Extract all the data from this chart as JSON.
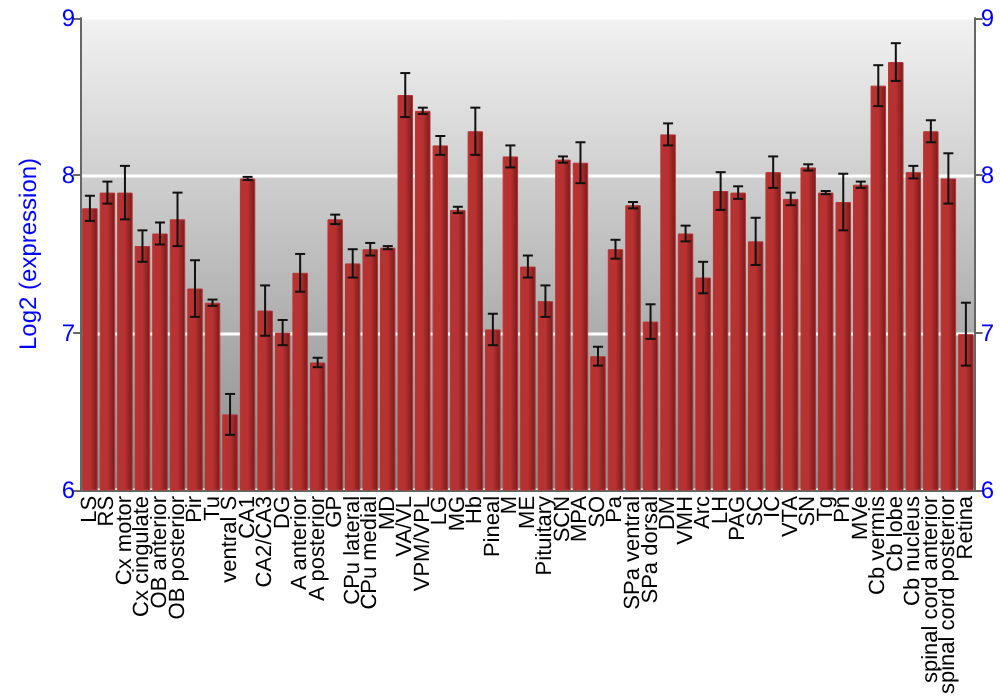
{
  "chart_data": {
    "type": "bar",
    "ylabel": "Log2 (expression)",
    "categories": [
      "LS",
      "RS",
      "Cx motor",
      "Cx cingulate",
      "OB anterior",
      "OB posterior",
      "Pir",
      "Tu",
      "ventral S",
      "CA1",
      "CA2/CA3",
      "DG",
      "A anterior",
      "A posterior",
      "GP",
      "CPu lateral",
      "CPu medial",
      "MD",
      "VA/VL",
      "VPM/VPL",
      "LG",
      "MG",
      "Hb",
      "Pineal",
      "M",
      "ME",
      "Pituitary",
      "SCN",
      "MPA",
      "SO",
      "Pa",
      "SPa ventral",
      "SPa dorsal",
      "DM",
      "VMH",
      "Arc",
      "LH",
      "PAG",
      "SC",
      "IC",
      "VTA",
      "SN",
      "Tg",
      "Pn",
      "MVe",
      "Cb vermis",
      "Cb lobe",
      "Cb nucleus",
      "spinal cord anterior",
      "spinal cord posterior",
      "Retina"
    ],
    "values": [
      7.79,
      7.89,
      7.89,
      7.55,
      7.63,
      7.72,
      7.28,
      7.19,
      6.48,
      7.98,
      7.14,
      7.0,
      7.38,
      6.81,
      7.72,
      7.44,
      7.53,
      7.54,
      8.51,
      8.41,
      8.19,
      7.78,
      8.28,
      7.02,
      8.12,
      7.42,
      7.2,
      8.1,
      8.08,
      6.85,
      7.53,
      7.81,
      7.07,
      8.26,
      7.63,
      7.35,
      7.9,
      7.89,
      7.58,
      8.02,
      7.85,
      8.05,
      7.89,
      7.83,
      7.94,
      8.57,
      8.72,
      8.02,
      8.28,
      7.98,
      6.99
    ],
    "errors": [
      0.08,
      0.07,
      0.17,
      0.1,
      0.07,
      0.17,
      0.18,
      0.02,
      0.13,
      0.01,
      0.16,
      0.08,
      0.12,
      0.03,
      0.03,
      0.09,
      0.04,
      0.01,
      0.14,
      0.02,
      0.06,
      0.02,
      0.15,
      0.1,
      0.07,
      0.07,
      0.1,
      0.02,
      0.13,
      0.06,
      0.06,
      0.02,
      0.11,
      0.07,
      0.05,
      0.1,
      0.12,
      0.04,
      0.15,
      0.1,
      0.04,
      0.02,
      0.01,
      0.18,
      0.02,
      0.13,
      0.12,
      0.04,
      0.07,
      0.16,
      0.2
    ],
    "color": "#b83232",
    "ylim": [
      6,
      9
    ],
    "yticks": [
      6,
      7,
      8,
      9
    ],
    "y2lim": [
      6,
      9
    ],
    "y2ticks": [
      6,
      7,
      8,
      9
    ],
    "grid": "y"
  }
}
